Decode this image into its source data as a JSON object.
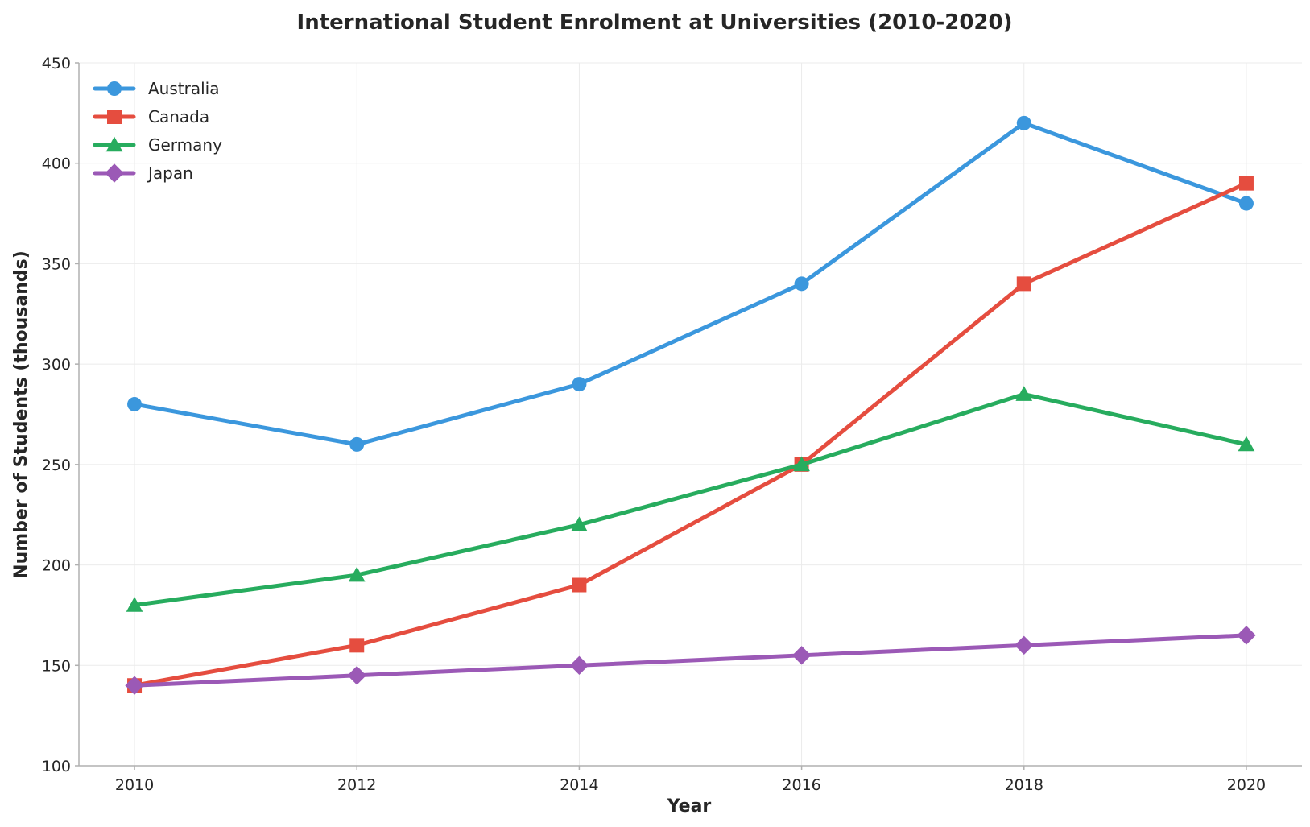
{
  "chart_data": {
    "type": "line",
    "title": "International Student Enrolment at Universities (2010-2020)",
    "xlabel": "Year",
    "ylabel": "Number of Students (thousands)",
    "x": [
      2010,
      2012,
      2014,
      2016,
      2018,
      2020
    ],
    "xticks": [
      2010,
      2012,
      2014,
      2016,
      2018,
      2020
    ],
    "xlim": [
      2009.5,
      2020.5
    ],
    "ylim": [
      100,
      450
    ],
    "yticks": [
      100,
      150,
      200,
      250,
      300,
      350,
      400,
      450
    ],
    "grid": true,
    "legend": "top-left",
    "series": [
      {
        "name": "Australia",
        "color": "#3b97dd",
        "marker": "circle",
        "values": [
          280,
          260,
          290,
          340,
          420,
          380
        ]
      },
      {
        "name": "Canada",
        "color": "#e54d3f",
        "marker": "square",
        "values": [
          140,
          160,
          190,
          250,
          340,
          390
        ]
      },
      {
        "name": "Germany",
        "color": "#27ac5e",
        "marker": "triangle",
        "values": [
          180,
          195,
          220,
          250,
          285,
          260
        ]
      },
      {
        "name": "Japan",
        "color": "#9b59b6",
        "marker": "diamond",
        "values": [
          140,
          145,
          150,
          155,
          160,
          165
        ]
      }
    ]
  }
}
